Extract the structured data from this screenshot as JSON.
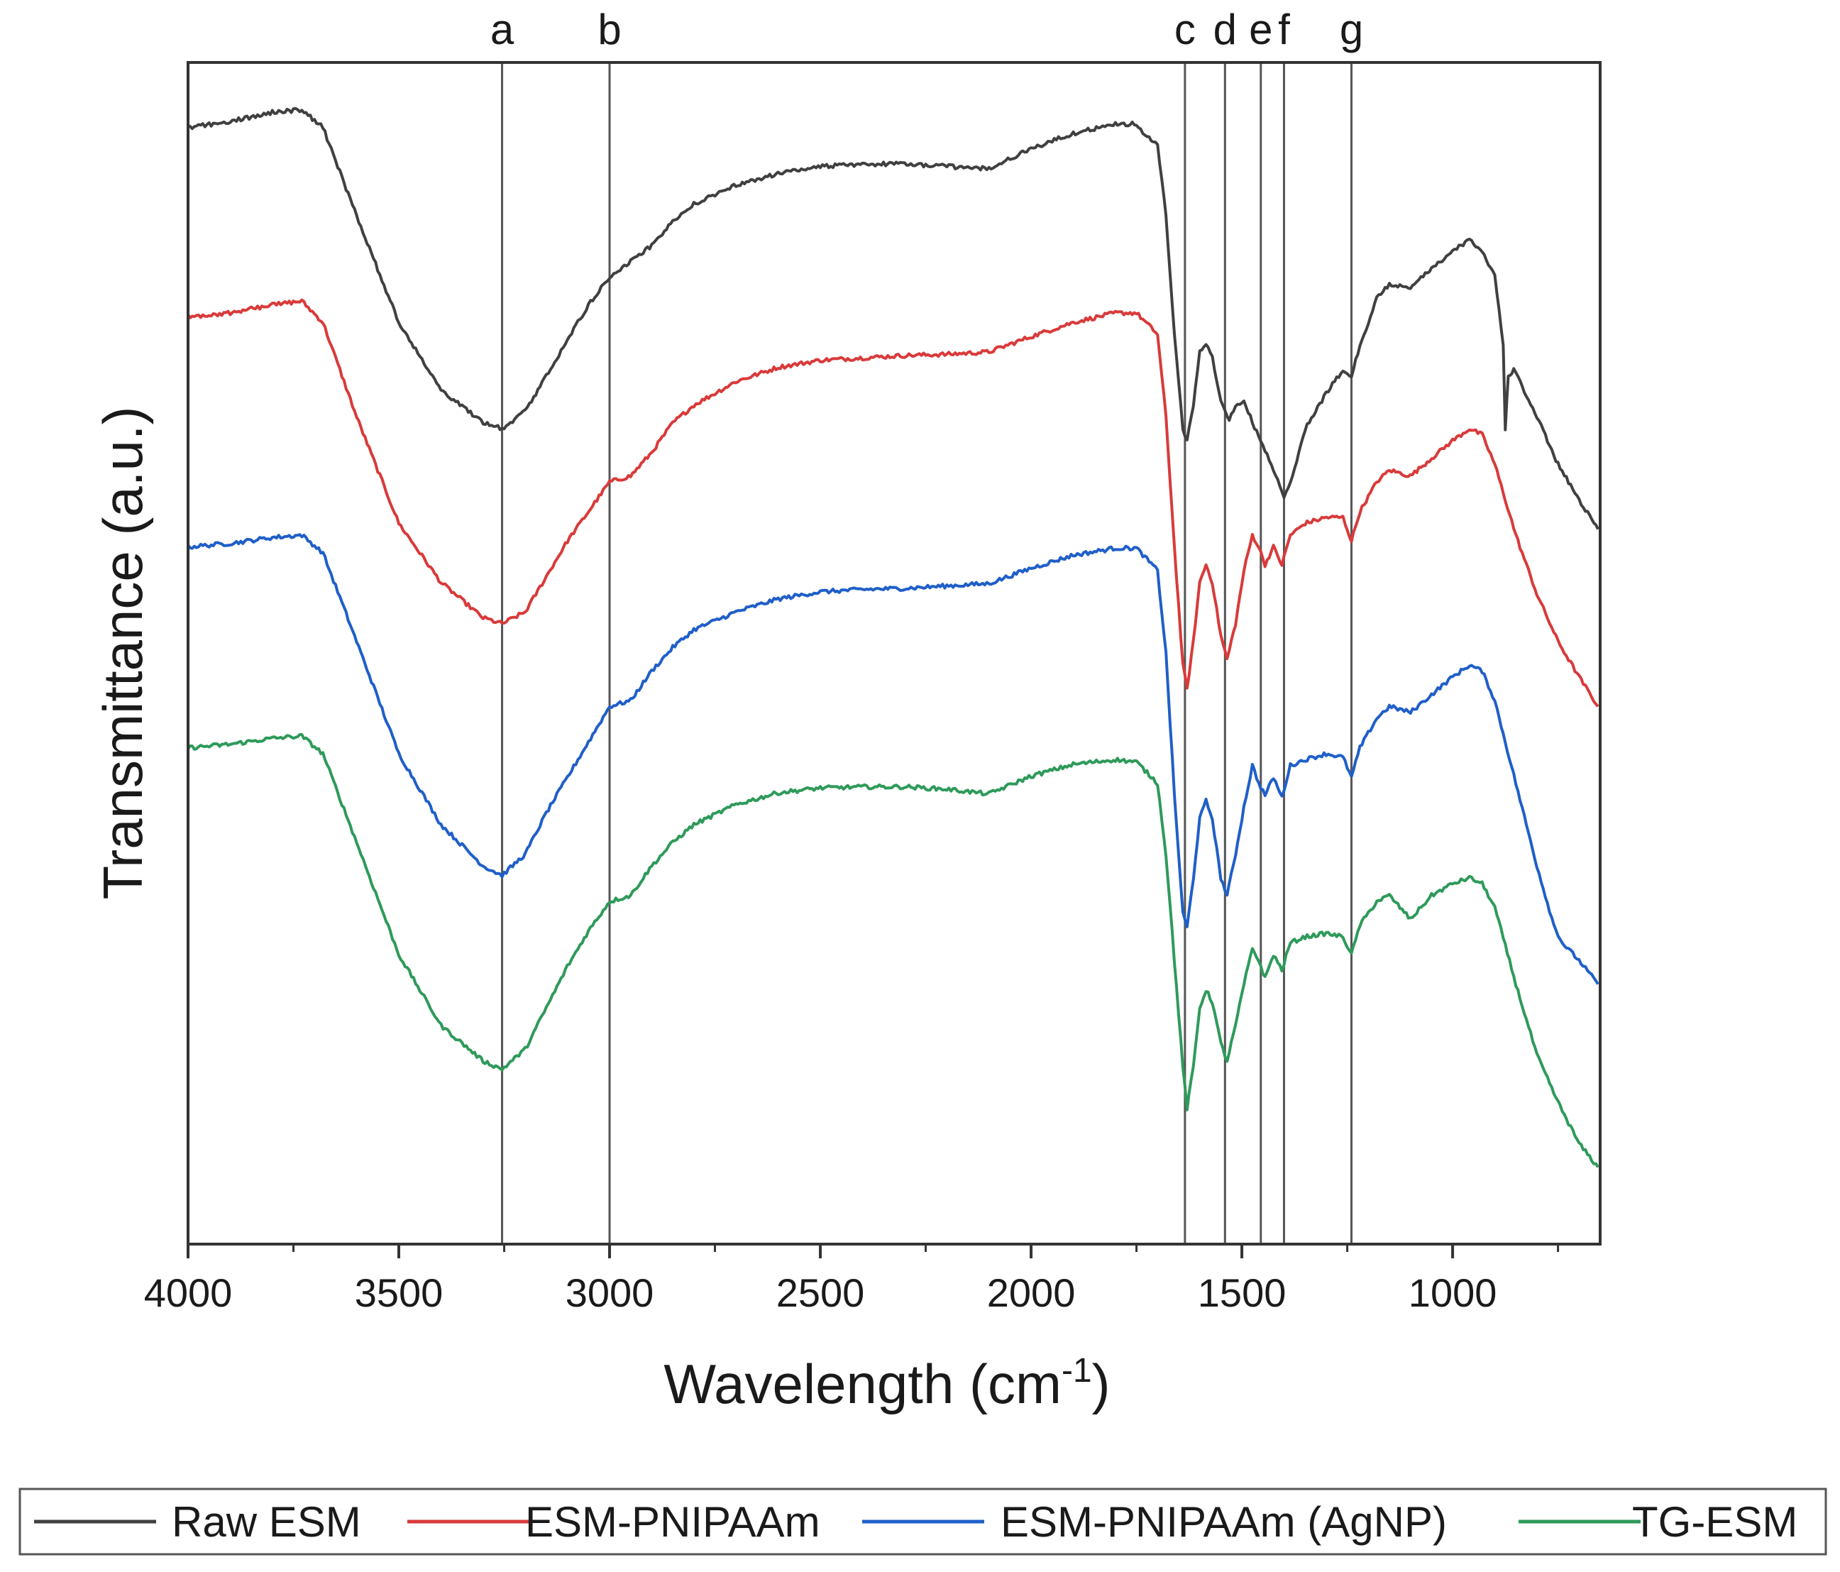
{
  "chart_data": {
    "type": "line",
    "title": "",
    "xlabel": "Wavelength (cm",
    "xlabel_sup": "-1",
    "xlabel_close": ")",
    "ylabel": "Transmittance (a.u.)",
    "xlim": [
      4000,
      650
    ],
    "ylim": [
      0,
      100
    ],
    "x_reversed": true,
    "grid": false,
    "y_ticks_shown": false,
    "x_ticks": [
      4000,
      3500,
      3000,
      2500,
      2000,
      1500,
      1000
    ],
    "x_tick_labels": [
      "4000",
      "3500",
      "3000",
      "2500",
      "2000",
      "1500",
      "1000"
    ],
    "peak_markers": [
      {
        "label": "a",
        "x": 3255
      },
      {
        "label": "b",
        "x": 3000
      },
      {
        "label": "c",
        "x": 1635
      },
      {
        "label": "d",
        "x": 1540
      },
      {
        "label": "e",
        "x": 1455
      },
      {
        "label": "f",
        "x": 1400
      },
      {
        "label": "g",
        "x": 1240
      }
    ],
    "legend_placement": "bottom",
    "series": [
      {
        "name": "Raw ESM",
        "color": "#404040",
        "points": [
          [
            4000,
            94.5
          ],
          [
            3900,
            95.0
          ],
          [
            3800,
            95.8
          ],
          [
            3730,
            96.0
          ],
          [
            3680,
            94.5
          ],
          [
            3600,
            87.0
          ],
          [
            3500,
            78.0
          ],
          [
            3400,
            72.3
          ],
          [
            3300,
            69.5
          ],
          [
            3255,
            69.0
          ],
          [
            3200,
            70.5
          ],
          [
            3150,
            73.5
          ],
          [
            3100,
            76.5
          ],
          [
            3050,
            79.5
          ],
          [
            3000,
            81.8
          ],
          [
            2950,
            83.2
          ],
          [
            2900,
            84.5
          ],
          [
            2850,
            86.5
          ],
          [
            2800,
            88.0
          ],
          [
            2700,
            89.6
          ],
          [
            2600,
            90.6
          ],
          [
            2500,
            91.2
          ],
          [
            2400,
            91.4
          ],
          [
            2300,
            91.4
          ],
          [
            2200,
            91.2
          ],
          [
            2100,
            91.0
          ],
          [
            2000,
            92.7
          ],
          [
            1900,
            94.0
          ],
          [
            1800,
            94.8
          ],
          [
            1760,
            94.8
          ],
          [
            1700,
            93.0
          ],
          [
            1680,
            87.0
          ],
          [
            1660,
            77.0
          ],
          [
            1640,
            69.0
          ],
          [
            1630,
            68.0
          ],
          [
            1615,
            71.0
          ],
          [
            1600,
            75.5
          ],
          [
            1585,
            76.2
          ],
          [
            1570,
            75.0
          ],
          [
            1550,
            71.5
          ],
          [
            1530,
            69.8
          ],
          [
            1510,
            71.2
          ],
          [
            1495,
            71.2
          ],
          [
            1480,
            70.0
          ],
          [
            1460,
            68.3
          ],
          [
            1430,
            66.0
          ],
          [
            1400,
            63.2
          ],
          [
            1380,
            65.0
          ],
          [
            1350,
            69.0
          ],
          [
            1300,
            72.0
          ],
          [
            1260,
            74.0
          ],
          [
            1240,
            73.5
          ],
          [
            1220,
            76.0
          ],
          [
            1180,
            80.0
          ],
          [
            1150,
            81.2
          ],
          [
            1100,
            81.0
          ],
          [
            1050,
            82.5
          ],
          [
            1000,
            84.0
          ],
          [
            960,
            85.0
          ],
          [
            930,
            84.0
          ],
          [
            900,
            82.0
          ],
          [
            880,
            76.0
          ],
          [
            875,
            69.0
          ],
          [
            868,
            73.5
          ],
          [
            855,
            74.0
          ],
          [
            800,
            70.0
          ],
          [
            750,
            66.0
          ],
          [
            700,
            63.0
          ],
          [
            655,
            60.5
          ]
        ]
      },
      {
        "name": "ESM-PNIPAAm",
        "color": "#d93a3a",
        "points": [
          [
            4000,
            78.5
          ],
          [
            3900,
            78.8
          ],
          [
            3800,
            79.5
          ],
          [
            3730,
            79.8
          ],
          [
            3680,
            78.0
          ],
          [
            3600,
            70.0
          ],
          [
            3500,
            61.0
          ],
          [
            3400,
            56.0
          ],
          [
            3300,
            53.0
          ],
          [
            3255,
            52.5
          ],
          [
            3200,
            53.5
          ],
          [
            3150,
            56.5
          ],
          [
            3100,
            59.5
          ],
          [
            3050,
            62.0
          ],
          [
            3000,
            64.5
          ],
          [
            2950,
            65.0
          ],
          [
            2900,
            67.0
          ],
          [
            2850,
            69.5
          ],
          [
            2800,
            71.0
          ],
          [
            2700,
            73.0
          ],
          [
            2600,
            74.2
          ],
          [
            2500,
            74.8
          ],
          [
            2400,
            75.0
          ],
          [
            2300,
            75.2
          ],
          [
            2200,
            75.3
          ],
          [
            2100,
            75.5
          ],
          [
            2000,
            76.8
          ],
          [
            1900,
            78.0
          ],
          [
            1800,
            78.8
          ],
          [
            1750,
            78.8
          ],
          [
            1700,
            77.0
          ],
          [
            1680,
            70.0
          ],
          [
            1660,
            59.0
          ],
          [
            1640,
            49.0
          ],
          [
            1630,
            47.0
          ],
          [
            1615,
            51.0
          ],
          [
            1600,
            56.0
          ],
          [
            1585,
            57.5
          ],
          [
            1570,
            56.0
          ],
          [
            1550,
            51.5
          ],
          [
            1535,
            49.5
          ],
          [
            1515,
            52.5
          ],
          [
            1495,
            57.0
          ],
          [
            1475,
            60.0
          ],
          [
            1460,
            59.0
          ],
          [
            1445,
            57.5
          ],
          [
            1425,
            59.0
          ],
          [
            1405,
            57.5
          ],
          [
            1385,
            60.0
          ],
          [
            1350,
            61.0
          ],
          [
            1300,
            61.5
          ],
          [
            1260,
            61.5
          ],
          [
            1240,
            59.5
          ],
          [
            1220,
            62.0
          ],
          [
            1180,
            64.5
          ],
          [
            1150,
            65.5
          ],
          [
            1100,
            65.0
          ],
          [
            1050,
            66.5
          ],
          [
            1000,
            68.0
          ],
          [
            960,
            69.0
          ],
          [
            930,
            68.5
          ],
          [
            900,
            66.0
          ],
          [
            850,
            60.0
          ],
          [
            800,
            55.0
          ],
          [
            750,
            51.0
          ],
          [
            700,
            48.0
          ],
          [
            655,
            45.5
          ]
        ]
      },
      {
        "name": "ESM-PNIPAAm (AgNP)",
        "color": "#1f5fc8",
        "points": [
          [
            4000,
            59.0
          ],
          [
            3900,
            59.3
          ],
          [
            3800,
            59.8
          ],
          [
            3730,
            60.0
          ],
          [
            3680,
            58.5
          ],
          [
            3600,
            51.0
          ],
          [
            3500,
            41.5
          ],
          [
            3400,
            35.5
          ],
          [
            3300,
            32.0
          ],
          [
            3255,
            31.2
          ],
          [
            3200,
            33.0
          ],
          [
            3150,
            36.5
          ],
          [
            3100,
            39.5
          ],
          [
            3050,
            42.5
          ],
          [
            3000,
            45.5
          ],
          [
            2950,
            46.0
          ],
          [
            2900,
            48.5
          ],
          [
            2850,
            50.5
          ],
          [
            2800,
            52.0
          ],
          [
            2700,
            53.5
          ],
          [
            2600,
            54.6
          ],
          [
            2500,
            55.2
          ],
          [
            2400,
            55.4
          ],
          [
            2300,
            55.5
          ],
          [
            2200,
            55.7
          ],
          [
            2100,
            55.9
          ],
          [
            2000,
            57.2
          ],
          [
            1900,
            58.3
          ],
          [
            1800,
            58.9
          ],
          [
            1750,
            58.9
          ],
          [
            1700,
            57.0
          ],
          [
            1680,
            50.0
          ],
          [
            1660,
            38.0
          ],
          [
            1640,
            28.0
          ],
          [
            1630,
            26.8
          ],
          [
            1615,
            31.0
          ],
          [
            1600,
            36.0
          ],
          [
            1585,
            37.5
          ],
          [
            1570,
            36.0
          ],
          [
            1550,
            31.0
          ],
          [
            1535,
            29.5
          ],
          [
            1515,
            33.0
          ],
          [
            1495,
            37.0
          ],
          [
            1475,
            40.5
          ],
          [
            1460,
            39.0
          ],
          [
            1445,
            38.0
          ],
          [
            1425,
            39.5
          ],
          [
            1405,
            37.8
          ],
          [
            1385,
            40.5
          ],
          [
            1350,
            41.0
          ],
          [
            1300,
            41.5
          ],
          [
            1260,
            41.2
          ],
          [
            1240,
            39.5
          ],
          [
            1220,
            42.0
          ],
          [
            1180,
            44.5
          ],
          [
            1150,
            45.5
          ],
          [
            1100,
            45.0
          ],
          [
            1050,
            46.5
          ],
          [
            1000,
            48.0
          ],
          [
            960,
            49.0
          ],
          [
            930,
            48.5
          ],
          [
            900,
            46.0
          ],
          [
            850,
            39.0
          ],
          [
            800,
            32.0
          ],
          [
            760,
            27.0
          ],
          [
            740,
            25.5
          ],
          [
            700,
            24.0
          ],
          [
            655,
            22.0
          ]
        ]
      },
      {
        "name": "TG-ESM",
        "color": "#2e9a5a",
        "points": [
          [
            4000,
            42.0
          ],
          [
            3900,
            42.3
          ],
          [
            3800,
            42.8
          ],
          [
            3730,
            43.0
          ],
          [
            3680,
            41.5
          ],
          [
            3600,
            34.0
          ],
          [
            3500,
            24.5
          ],
          [
            3400,
            18.5
          ],
          [
            3300,
            15.5
          ],
          [
            3255,
            14.8
          ],
          [
            3200,
            16.5
          ],
          [
            3150,
            20.0
          ],
          [
            3100,
            23.5
          ],
          [
            3050,
            26.5
          ],
          [
            3000,
            29.0
          ],
          [
            2950,
            29.5
          ],
          [
            2900,
            32.0
          ],
          [
            2850,
            34.0
          ],
          [
            2800,
            35.5
          ],
          [
            2700,
            37.2
          ],
          [
            2600,
            38.2
          ],
          [
            2500,
            38.6
          ],
          [
            2400,
            38.7
          ],
          [
            2300,
            38.7
          ],
          [
            2200,
            38.5
          ],
          [
            2100,
            38.1
          ],
          [
            2000,
            39.6
          ],
          [
            1900,
            40.6
          ],
          [
            1800,
            41.0
          ],
          [
            1750,
            40.8
          ],
          [
            1700,
            39.0
          ],
          [
            1680,
            33.0
          ],
          [
            1660,
            24.0
          ],
          [
            1640,
            15.0
          ],
          [
            1630,
            11.5
          ],
          [
            1615,
            15.0
          ],
          [
            1600,
            20.0
          ],
          [
            1585,
            21.5
          ],
          [
            1570,
            20.5
          ],
          [
            1550,
            17.0
          ],
          [
            1535,
            15.5
          ],
          [
            1515,
            18.5
          ],
          [
            1495,
            22.0
          ],
          [
            1475,
            25.0
          ],
          [
            1460,
            24.0
          ],
          [
            1445,
            22.5
          ],
          [
            1425,
            24.5
          ],
          [
            1405,
            23.2
          ],
          [
            1385,
            25.5
          ],
          [
            1350,
            26.0
          ],
          [
            1300,
            26.3
          ],
          [
            1260,
            26.0
          ],
          [
            1240,
            24.5
          ],
          [
            1220,
            27.0
          ],
          [
            1180,
            29.0
          ],
          [
            1150,
            29.5
          ],
          [
            1100,
            27.5
          ],
          [
            1050,
            29.5
          ],
          [
            1000,
            30.5
          ],
          [
            960,
            31.0
          ],
          [
            930,
            30.5
          ],
          [
            900,
            28.5
          ],
          [
            850,
            22.0
          ],
          [
            800,
            16.0
          ],
          [
            750,
            12.0
          ],
          [
            700,
            8.5
          ],
          [
            655,
            6.5
          ]
        ]
      }
    ]
  }
}
